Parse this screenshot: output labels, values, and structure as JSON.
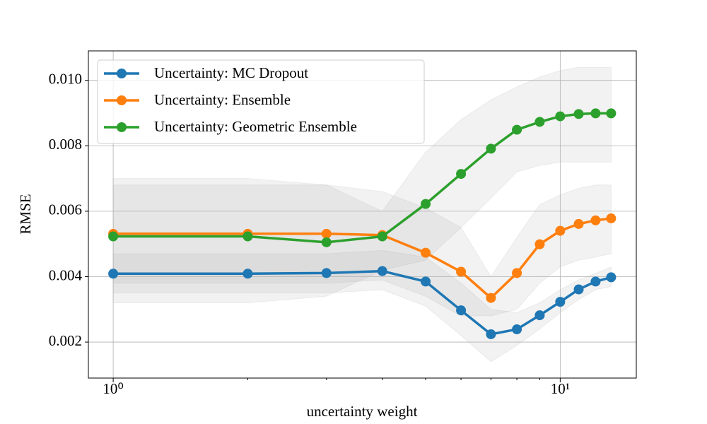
{
  "chart_data": {
    "type": "line",
    "xlabel": "uncertainty weight",
    "ylabel": "RMSE",
    "xscale": "log",
    "x": [
      1,
      2,
      3,
      4,
      5,
      6,
      7,
      8,
      9,
      10,
      11,
      12,
      13
    ],
    "xlim": [
      0.88,
      14.8
    ],
    "xticks": [
      {
        "value": 1,
        "label": "10⁰"
      },
      {
        "value": 10,
        "label": "10¹"
      }
    ],
    "xminorticks": [
      2,
      3,
      4,
      5,
      6,
      7,
      8,
      9
    ],
    "ylim": [
      0.0009,
      0.0109
    ],
    "yticks": [
      0.002,
      0.004,
      0.006,
      0.008,
      {
        "value": 0.01,
        "label": "0.010"
      }
    ],
    "grid": true,
    "legend": "upper left",
    "band_color": "#999999",
    "series": [
      {
        "name": "Uncertainty: MC Dropout",
        "color": "#1f77b4",
        "values": [
          0.00409,
          0.00409,
          0.00411,
          0.00417,
          0.00385,
          0.00297,
          0.00224,
          0.00239,
          0.00282,
          0.00323,
          0.00361,
          0.00385,
          0.00398
        ],
        "lower": [
          0.0035,
          0.0035,
          0.0035,
          0.0036,
          0.0031,
          0.0022,
          0.0014,
          0.0019,
          0.0024,
          0.0029,
          0.0033,
          0.0036,
          0.0037
        ],
        "upper": [
          0.0047,
          0.0047,
          0.0047,
          0.0048,
          0.0046,
          0.0038,
          0.003,
          0.0029,
          0.0032,
          0.0036,
          0.0039,
          0.0041,
          0.0043
        ]
      },
      {
        "name": "Uncertainty: Ensemble",
        "color": "#ff7f0e",
        "values": [
          0.00531,
          0.00531,
          0.00531,
          0.00527,
          0.00473,
          0.00415,
          0.00335,
          0.00411,
          0.00499,
          0.0054,
          0.00561,
          0.00572,
          0.00578
        ],
        "lower": [
          0.0038,
          0.0038,
          0.0038,
          0.0039,
          0.0034,
          0.0028,
          0.0028,
          0.003,
          0.0038,
          0.0043,
          0.0045,
          0.0046,
          0.0047
        ],
        "upper": [
          0.0068,
          0.0068,
          0.0068,
          0.0066,
          0.0061,
          0.0055,
          0.004,
          0.0052,
          0.0062,
          0.0065,
          0.0067,
          0.0068,
          0.0068
        ]
      },
      {
        "name": "Uncertainty: Geometric Ensemble",
        "color": "#2ca02c",
        "values": [
          0.00523,
          0.00523,
          0.00505,
          0.00523,
          0.00622,
          0.00714,
          0.00791,
          0.00849,
          0.00873,
          0.0089,
          0.00897,
          0.00899,
          0.00899
        ],
        "lower": [
          0.0032,
          0.0032,
          0.0034,
          0.0042,
          0.0045,
          0.0055,
          0.0064,
          0.0072,
          0.0074,
          0.0075,
          0.0075,
          0.0075,
          0.0075
        ],
        "upper": [
          0.007,
          0.007,
          0.0068,
          0.006,
          0.0078,
          0.0088,
          0.0094,
          0.0098,
          0.0101,
          0.0103,
          0.0104,
          0.0104,
          0.0104
        ]
      }
    ]
  }
}
